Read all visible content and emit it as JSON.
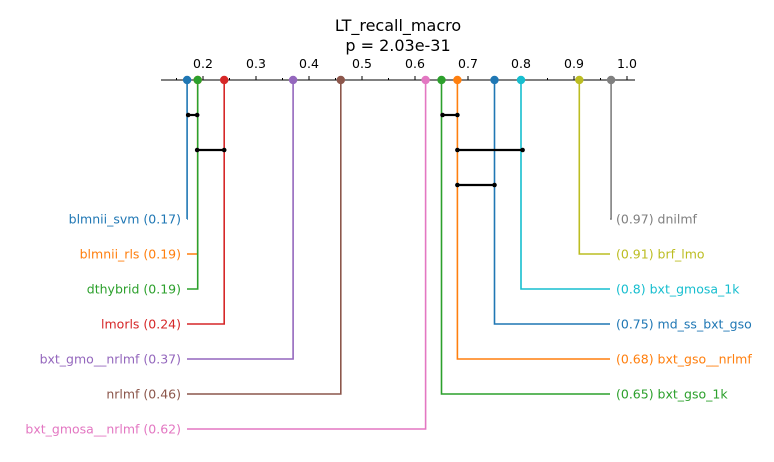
{
  "chart_data": {
    "type": "critical-difference",
    "title": "LT_recall_macro",
    "subtitle": "p = 2.03e-31",
    "axis": {
      "ticks": [
        0.2,
        0.3,
        0.4,
        0.5,
        0.6,
        0.7,
        0.8,
        0.9,
        1.0
      ],
      "tick_labels": [
        "0.2",
        "0.3",
        "0.4",
        "0.5",
        "0.6",
        "0.7",
        "0.8",
        "0.9",
        "1.0"
      ],
      "range": [
        0.1,
        1.0
      ]
    },
    "left_methods": [
      {
        "name": "blmnii_svm",
        "score": 0.17,
        "label": "blmnii_svm (0.17)",
        "color": "#1f77b4"
      },
      {
        "name": "blmnii_rls",
        "score": 0.19,
        "label": "blmnii_rls (0.19)",
        "color": "#ff7f0e"
      },
      {
        "name": "dthybrid",
        "score": 0.19,
        "label": "dthybrid (0.19)",
        "color": "#2ca02c"
      },
      {
        "name": "lmorls",
        "score": 0.24,
        "label": "lmorls (0.24)",
        "color": "#d62728"
      },
      {
        "name": "bxt_gmo__nrlmf",
        "score": 0.37,
        "label": "bxt_gmo__nrlmf (0.37)",
        "color": "#9467bd"
      },
      {
        "name": "nrlmf",
        "score": 0.46,
        "label": "nrlmf (0.46)",
        "color": "#8c564b"
      },
      {
        "name": "bxt_gmosa__nrlmf",
        "score": 0.62,
        "label": "bxt_gmosa__nrlmf (0.62)",
        "color": "#e377c2"
      }
    ],
    "right_methods": [
      {
        "name": "dnilmf",
        "score": 0.97,
        "label": "(0.97) dnilmf",
        "color": "#7f7f7f"
      },
      {
        "name": "brf_lmo",
        "score": 0.91,
        "label": "(0.91) brf_lmo",
        "color": "#bcbd22"
      },
      {
        "name": "bxt_gmosa_1k",
        "score": 0.8,
        "label": "(0.8) bxt_gmosa_1k",
        "color": "#17becf"
      },
      {
        "name": "md_ss_bxt_gso",
        "score": 0.75,
        "label": "(0.75) md_ss_bxt_gso",
        "color": "#1f77b4"
      },
      {
        "name": "bxt_gso__nrlmf",
        "score": 0.68,
        "label": "(0.68) bxt_gso__nrlmf",
        "color": "#ff7f0e"
      },
      {
        "name": "bxt_gso_1k",
        "score": 0.65,
        "label": "(0.65) bxt_gso_1k",
        "color": "#2ca02c"
      }
    ],
    "cliques": [
      [
        0.172,
        0.189
      ],
      [
        0.189,
        0.24
      ],
      [
        0.652,
        0.68
      ],
      [
        0.68,
        0.803
      ],
      [
        0.68,
        0.75
      ]
    ]
  }
}
